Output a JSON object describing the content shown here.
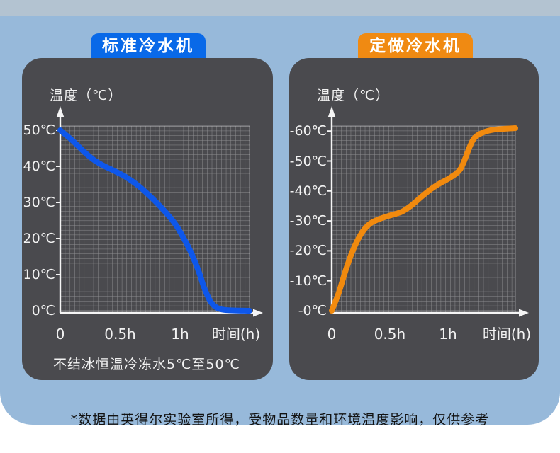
{
  "footer": {
    "note": "*数据由英得尔实验室所得，受物品数量和环境温度影响，仅供参考"
  },
  "colors": {
    "background_top_strip": "#b3c3d1",
    "background": "#97b9da",
    "panel": "#4a4a4e",
    "grid_line": "rgba(255,255,255,0.38)",
    "axis": "#f5f5f5",
    "standard_blue": "#0e57ea",
    "standard_tab_blue": "#0969e8",
    "custom_orange": "#f18a0e",
    "custom_tab_orange": "#f08a12"
  },
  "chart_data": [
    {
      "type": "line",
      "title": "标准冷水机",
      "ylabel": "温度（℃）",
      "xlabel": "时间(h)",
      "note": "不结冰恒温冷冻水5℃至50℃",
      "y_ticks": [
        "0℃",
        "10℃",
        "20℃",
        "30℃",
        "40℃",
        "50℃"
      ],
      "y_tick_values": [
        0,
        10,
        20,
        30,
        40,
        50
      ],
      "x_ticks": [
        "0",
        "0.5h",
        "1h"
      ],
      "x_tick_values": [
        0,
        0.5,
        1
      ],
      "x_range": [
        0,
        1.58
      ],
      "y_range": [
        0,
        52
      ],
      "grid": true,
      "legend": "none",
      "line_color": "#0e57ea",
      "header_color": "#0969e8",
      "points": [
        [
          0,
          50
        ],
        [
          0.1,
          47.2
        ],
        [
          0.2,
          44
        ],
        [
          0.28,
          41.8
        ],
        [
          0.36,
          40.2
        ],
        [
          0.46,
          38.6
        ],
        [
          0.56,
          36.8
        ],
        [
          0.66,
          34.4
        ],
        [
          0.76,
          31.4
        ],
        [
          0.86,
          28
        ],
        [
          0.96,
          24
        ],
        [
          1.04,
          19.5
        ],
        [
          1.1,
          15.5
        ],
        [
          1.16,
          10.5
        ],
        [
          1.2,
          6.5
        ],
        [
          1.25,
          2.8
        ],
        [
          1.3,
          1
        ],
        [
          1.38,
          0.2
        ],
        [
          1.58,
          0
        ]
      ]
    },
    {
      "type": "line",
      "title": "定做冷水机",
      "ylabel": "温度（℃）",
      "xlabel": "时间(h)",
      "y_ticks": [
        "-0℃",
        "-10℃",
        "-20℃",
        "-30℃",
        "-40℃",
        "-50℃",
        "-60℃"
      ],
      "y_tick_values": [
        0,
        -10,
        -20,
        -30,
        -40,
        -50,
        -60
      ],
      "x_ticks": [
        "0",
        "0.5h",
        "1h"
      ],
      "x_tick_values": [
        0,
        0.5,
        1
      ],
      "x_range": [
        0,
        1.58
      ],
      "y_range": [
        0,
        -62
      ],
      "grid": true,
      "legend": "none",
      "line_color": "#f18a0e",
      "header_color": "#f08a12",
      "points": [
        [
          0,
          0
        ],
        [
          0.06,
          -6
        ],
        [
          0.12,
          -13.5
        ],
        [
          0.18,
          -20
        ],
        [
          0.25,
          -25.5
        ],
        [
          0.32,
          -28.8
        ],
        [
          0.4,
          -30.5
        ],
        [
          0.5,
          -31.8
        ],
        [
          0.6,
          -33
        ],
        [
          0.68,
          -35
        ],
        [
          0.77,
          -38
        ],
        [
          0.85,
          -40.5
        ],
        [
          0.92,
          -42.3
        ],
        [
          1.0,
          -44
        ],
        [
          1.07,
          -45.8
        ],
        [
          1.11,
          -47.5
        ],
        [
          1.15,
          -51
        ],
        [
          1.19,
          -55
        ],
        [
          1.23,
          -57.8
        ],
        [
          1.3,
          -59.5
        ],
        [
          1.4,
          -60.5
        ],
        [
          1.58,
          -61
        ]
      ]
    }
  ]
}
